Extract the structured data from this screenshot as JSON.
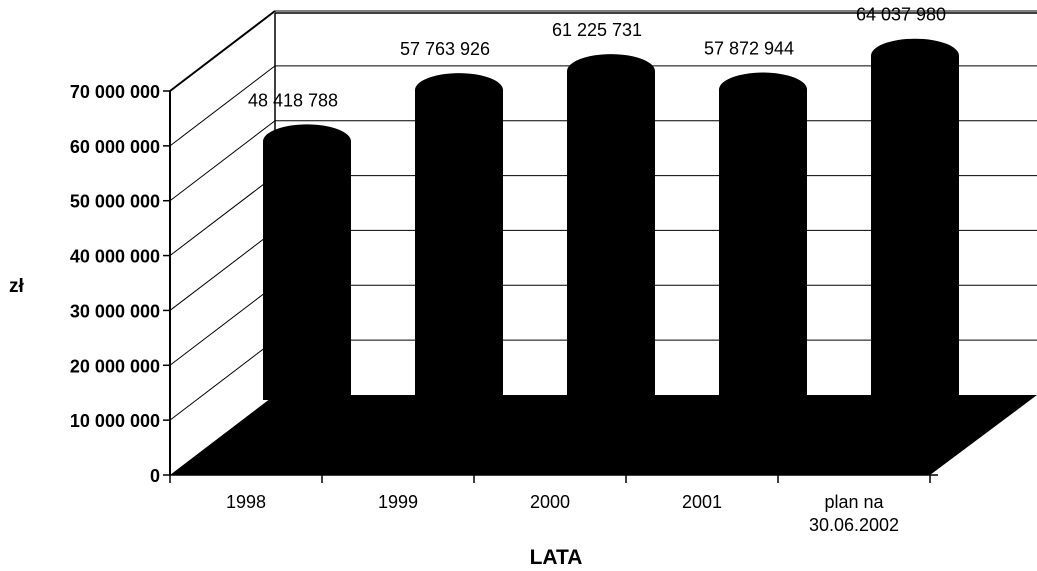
{
  "chart_data": {
    "type": "bar",
    "categories": [
      [
        "1998"
      ],
      [
        "1999"
      ],
      [
        "2000"
      ],
      [
        "2001"
      ],
      [
        "plan na",
        "30.06.2002"
      ]
    ],
    "values": [
      48418788,
      57763926,
      61225731,
      57872944,
      64037980
    ],
    "data_labels": [
      "48 418 788",
      "57 763 926",
      "61 225 731",
      "57 872 944",
      "64 037 980"
    ],
    "ylabel": "zł",
    "xlabel": "LATA",
    "ylim": [
      0,
      70000000
    ],
    "y_ticks": [
      0,
      10000000,
      20000000,
      30000000,
      40000000,
      50000000,
      60000000,
      70000000
    ],
    "y_tick_labels": [
      "0",
      "10 000 000",
      "20 000 000",
      "30 000 000",
      "40 000 000",
      "50 000 000",
      "60 000 000",
      "70 000 000"
    ],
    "style": "3d-cylinder",
    "grid": true,
    "legend": "none",
    "bar_color": "#000000"
  }
}
